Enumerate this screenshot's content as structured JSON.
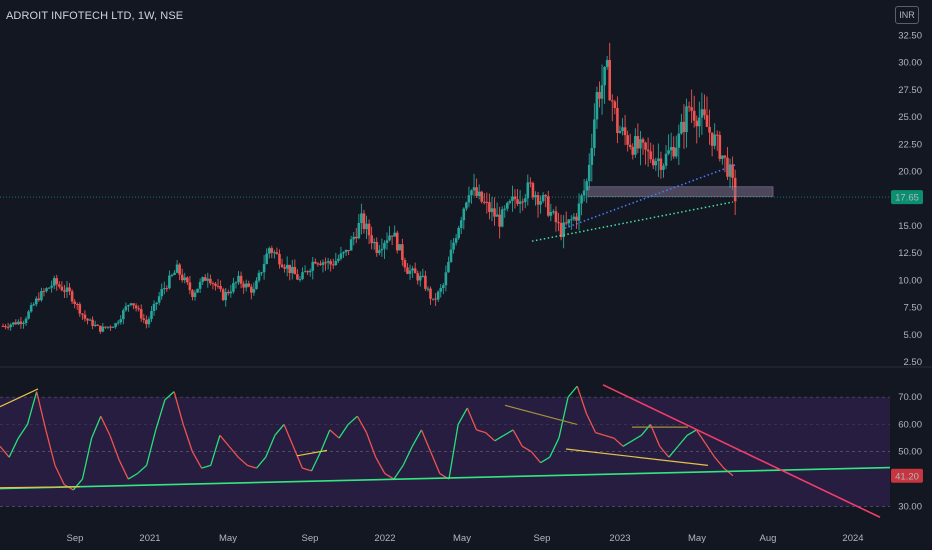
{
  "header": {
    "title": "ADROIT INFOTECH LTD, 1W, NSE",
    "currency": "INR"
  },
  "colors": {
    "background": "#131722",
    "up": "#26a69a",
    "down": "#ef5350",
    "rsi_line_up": "#26e07a",
    "rsi_line_down": "#ef5350",
    "rsi_band": "#2a1f45",
    "trend_pink": "#f23d6a",
    "trend_green": "#33e680",
    "trend_yellow": "#e8c04a",
    "dotted_blue": "#4d7cff",
    "dotted_green": "#45e0a0",
    "zone": "#7d6f8a"
  },
  "price_axis": {
    "ticks": [
      "32.50",
      "30.00",
      "27.50",
      "25.00",
      "22.50",
      "20.00",
      "17.50",
      "15.00",
      "12.50",
      "10.00",
      "7.50",
      "5.00",
      "2.50"
    ]
  },
  "rsi_axis": {
    "ticks": [
      "70.00",
      "60.00",
      "50.00",
      "30.00"
    ]
  },
  "time_axis": {
    "labels": [
      "Sep",
      "2021",
      "May",
      "Sep",
      "2022",
      "May",
      "Sep",
      "2023",
      "May",
      "Aug",
      "2024"
    ]
  },
  "price_badge": "17.65",
  "rsi_badge": "41.20",
  "chart_data": [
    {
      "type": "candlestick",
      "interval": "1W",
      "ylim": [
        2.5,
        33
      ],
      "last_close": 17.65,
      "support_zone": [
        17.7,
        18.6
      ],
      "x_labels": [
        "Sep",
        "2021",
        "May",
        "Sep",
        "2022",
        "May",
        "Sep",
        "2023",
        "May",
        "Aug",
        "2024"
      ],
      "approx_close_path": [
        [
          0,
          5.8
        ],
        [
          8,
          6.3
        ],
        [
          14,
          8.5
        ],
        [
          20,
          9.8
        ],
        [
          26,
          8.8
        ],
        [
          32,
          6.5
        ],
        [
          38,
          5.5
        ],
        [
          44,
          6.0
        ],
        [
          50,
          8.2
        ],
        [
          56,
          6.0
        ],
        [
          62,
          9.0
        ],
        [
          68,
          11.0
        ],
        [
          74,
          8.8
        ],
        [
          80,
          10.5
        ],
        [
          86,
          8.5
        ],
        [
          92,
          10.0
        ],
        [
          98,
          9.0
        ],
        [
          104,
          13.0
        ],
        [
          110,
          11.5
        ],
        [
          116,
          10.0
        ],
        [
          122,
          12.0
        ],
        [
          128,
          11.5
        ],
        [
          134,
          12.5
        ],
        [
          140,
          15.5
        ],
        [
          146,
          13.0
        ],
        [
          152,
          14.5
        ],
        [
          158,
          11.0
        ],
        [
          164,
          10.0
        ],
        [
          168,
          8.0
        ],
        [
          172,
          9.5
        ],
        [
          176,
          13.5
        ],
        [
          182,
          18.5
        ],
        [
          188,
          17.0
        ],
        [
          194,
          15.5
        ],
        [
          200,
          17.5
        ],
        [
          206,
          18.5
        ],
        [
          212,
          17.0
        ],
        [
          218,
          14.5
        ],
        [
          224,
          16.0
        ],
        [
          228,
          19.0
        ],
        [
          232,
          27.0
        ],
        [
          236,
          29.0
        ],
        [
          240,
          24.0
        ],
        [
          246,
          22.5
        ],
        [
          252,
          21.5
        ],
        [
          258,
          21.0
        ],
        [
          264,
          23.0
        ],
        [
          268,
          26.0
        ],
        [
          274,
          24.5
        ],
        [
          280,
          22.0
        ],
        [
          284,
          19.8
        ],
        [
          286,
          17.65
        ]
      ]
    },
    {
      "type": "line",
      "name": "",
      "ylim": [
        25,
        77
      ],
      "levels": [
        70,
        60,
        50,
        30
      ],
      "last_value": 41.2,
      "values": [
        52,
        48,
        55,
        60,
        72,
        58,
        45,
        38,
        36,
        40,
        55,
        63,
        56,
        47,
        40,
        42,
        45,
        58,
        69,
        72,
        60,
        50,
        44,
        45,
        56,
        52,
        48,
        45,
        44,
        48,
        56,
        60,
        52,
        44,
        43,
        50,
        58,
        55,
        60,
        63,
        57,
        48,
        42,
        40,
        45,
        52,
        58,
        50,
        42,
        40,
        60,
        66,
        58,
        57,
        54,
        56,
        58,
        52,
        50,
        46,
        48,
        55,
        70,
        74,
        64,
        57,
        56,
        55,
        52,
        54,
        56,
        60,
        52,
        48,
        52,
        56,
        58,
        53,
        48,
        44,
        41.2
      ]
    }
  ]
}
